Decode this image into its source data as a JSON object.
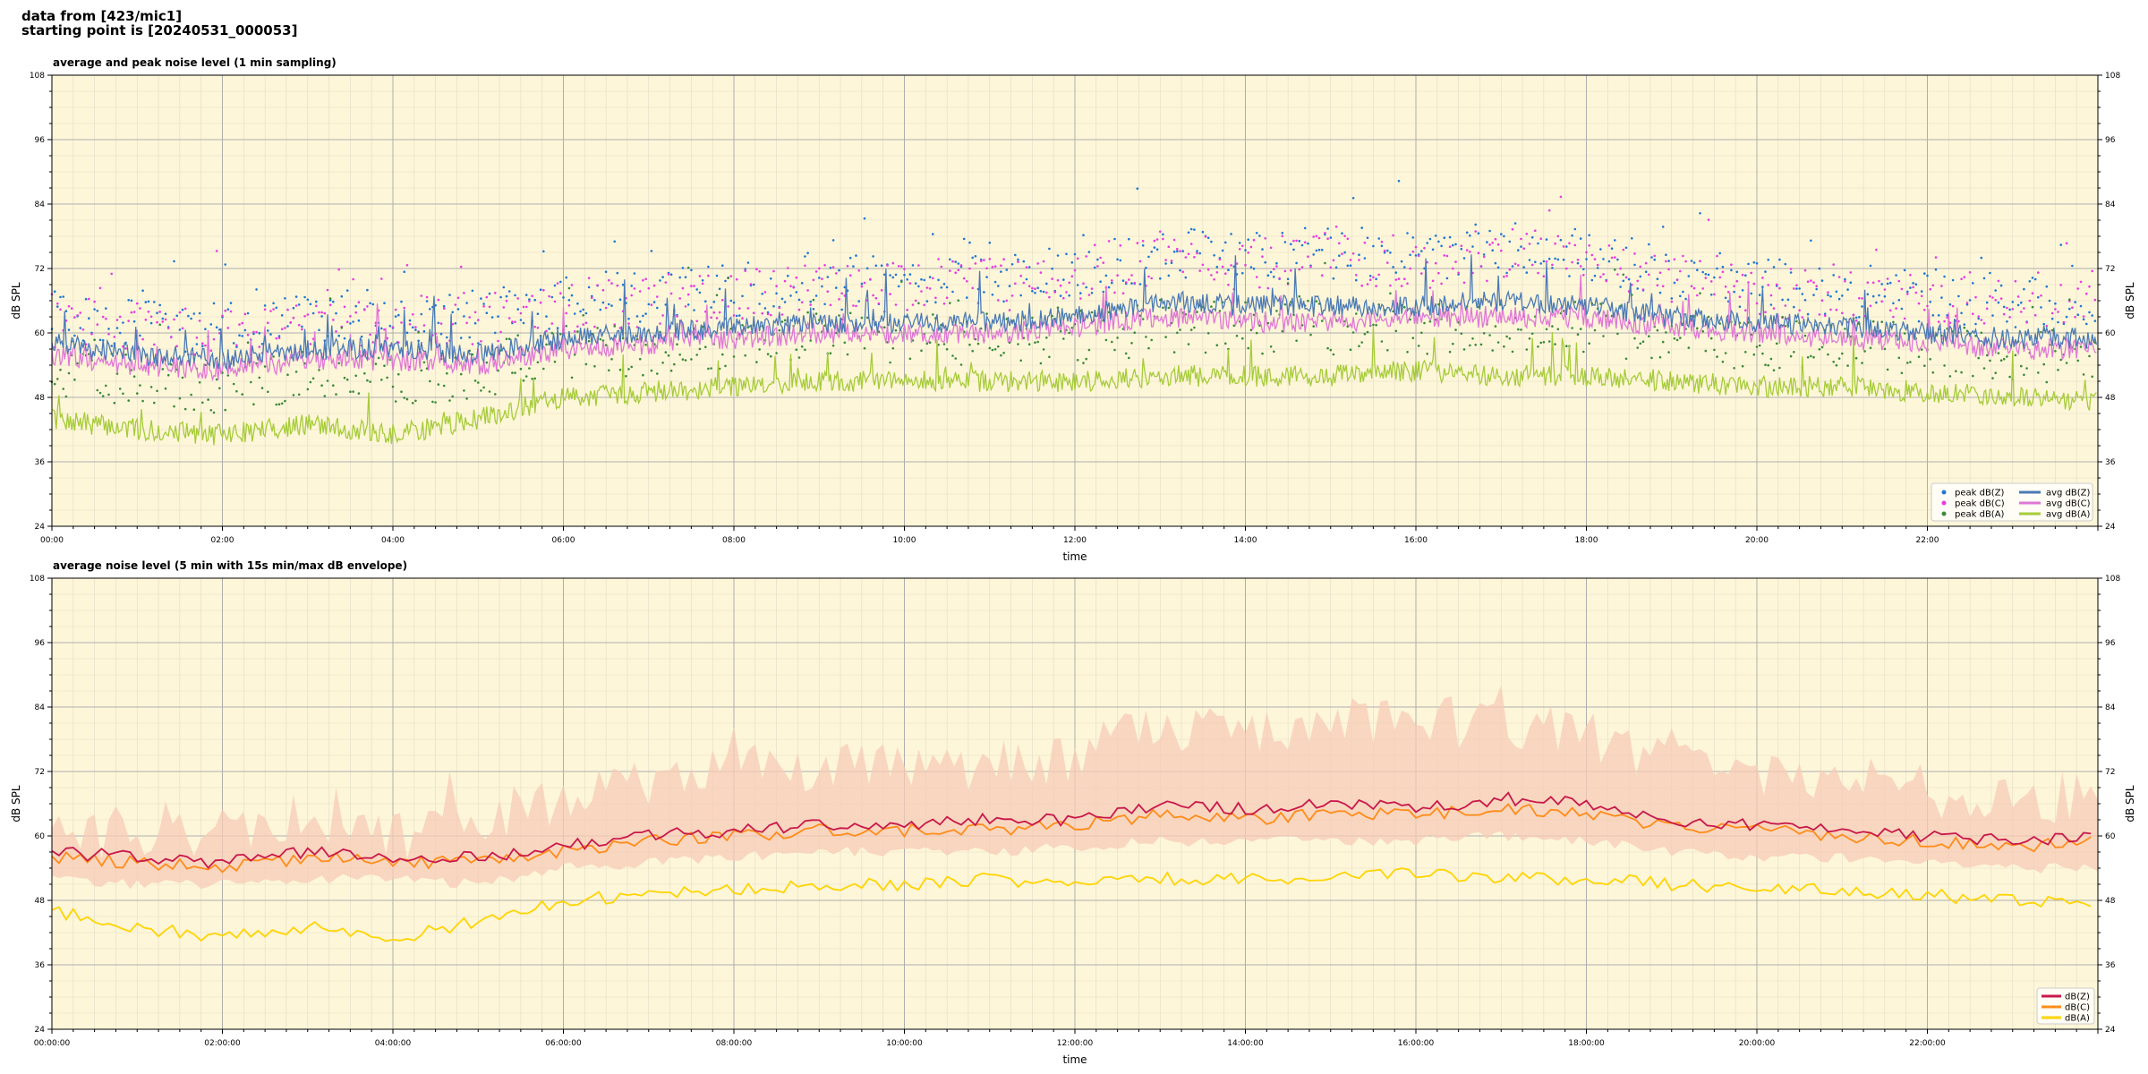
{
  "header": {
    "line1": "data from [423/mic1]",
    "line2": "starting point is [20240531_000053]"
  },
  "colors": {
    "plot_bg": "#fef6d9",
    "peak_z": "#1f77d4",
    "peak_c": "#e83be0",
    "peak_a": "#3a8a3a",
    "avg_z": "#4a7ab6",
    "avg_c": "#e077d6",
    "avg_a": "#a6cc3a",
    "env_z": "#c9184a",
    "env_c": "#ff8c1a",
    "env_a": "#ffd400",
    "envelope_fill": "#f7cbb5"
  },
  "chart_data": [
    {
      "type": "line",
      "title": "average and peak noise level (1 min sampling)",
      "xlabel": "time",
      "ylabel": "dB SPL",
      "ylabel_right": "dB SPL",
      "ylim": [
        24,
        108
      ],
      "yticks": [
        24,
        36,
        48,
        60,
        72,
        84,
        96,
        108
      ],
      "xlim_hours": [
        0,
        24
      ],
      "xtick_labels": [
        "00:00",
        "02:00",
        "04:00",
        "06:00",
        "08:00",
        "10:00",
        "12:00",
        "14:00",
        "16:00",
        "18:00",
        "20:00",
        "22:00"
      ],
      "grid": true,
      "legend_position": "bottom-right",
      "legend": [
        "peak dB(Z)",
        "peak dB(C)",
        "peak dB(A)",
        "avg dB(Z)",
        "avg dB(C)",
        "avg dB(A)"
      ],
      "series": [
        {
          "name": "avg dB(Z)",
          "kind": "line",
          "x_hours": [
            0,
            1,
            2,
            3,
            4,
            5,
            6,
            7,
            8,
            9,
            10,
            11,
            12,
            13,
            14,
            15,
            16,
            17,
            18,
            19,
            20,
            21,
            22,
            23,
            24
          ],
          "values": [
            58,
            56,
            55,
            57,
            57,
            56,
            59,
            60,
            61,
            62,
            62,
            62,
            63,
            66,
            65,
            65,
            65,
            66,
            65,
            63,
            62,
            61,
            60,
            59,
            59
          ]
        },
        {
          "name": "avg dB(C)",
          "kind": "line",
          "x_hours": [
            0,
            1,
            2,
            3,
            4,
            5,
            6,
            7,
            8,
            9,
            10,
            11,
            12,
            13,
            14,
            15,
            16,
            17,
            18,
            19,
            20,
            21,
            22,
            23,
            24
          ],
          "values": [
            56,
            54,
            53,
            55,
            55,
            54,
            57,
            58,
            59,
            60,
            60,
            60,
            61,
            63,
            62,
            62,
            63,
            63,
            63,
            61,
            60,
            59,
            58,
            57,
            57
          ]
        },
        {
          "name": "avg dB(A)",
          "kind": "line",
          "x_hours": [
            0,
            1,
            2,
            3,
            4,
            5,
            6,
            7,
            8,
            9,
            10,
            11,
            12,
            13,
            14,
            15,
            16,
            17,
            18,
            19,
            20,
            21,
            22,
            23,
            24
          ],
          "values": [
            44,
            42,
            41,
            43,
            41,
            44,
            48,
            49,
            50,
            51,
            51,
            51,
            51,
            52,
            52,
            52,
            53,
            52,
            52,
            51,
            50,
            50,
            49,
            48,
            47
          ]
        },
        {
          "name": "peak dB(Z)",
          "kind": "scatter",
          "x_hours": [
            0,
            1,
            2,
            3,
            4,
            5,
            6,
            7,
            8,
            9,
            10,
            11,
            12,
            13,
            14,
            15,
            16,
            17,
            18,
            19,
            20,
            21,
            22,
            23,
            24
          ],
          "values": [
            62,
            61,
            60,
            62,
            62,
            62,
            65,
            66,
            67,
            68,
            69,
            69,
            70,
            74,
            73,
            74,
            73,
            75,
            74,
            70,
            68,
            67,
            66,
            65,
            65
          ]
        },
        {
          "name": "peak dB(C)",
          "kind": "scatter",
          "x_hours": [
            0,
            1,
            2,
            3,
            4,
            5,
            6,
            7,
            8,
            9,
            10,
            11,
            12,
            13,
            14,
            15,
            16,
            17,
            18,
            19,
            20,
            21,
            22,
            23,
            24
          ],
          "values": [
            61,
            60,
            59,
            61,
            61,
            61,
            64,
            65,
            66,
            67,
            68,
            68,
            69,
            73,
            72,
            73,
            72,
            74,
            73,
            69,
            67,
            66,
            65,
            64,
            64
          ]
        },
        {
          "name": "peak dB(A)",
          "kind": "scatter",
          "x_hours": [
            0,
            1,
            2,
            3,
            4,
            5,
            6,
            7,
            8,
            9,
            10,
            11,
            12,
            13,
            14,
            15,
            16,
            17,
            18,
            19,
            20,
            21,
            22,
            23,
            24
          ],
          "values": [
            52,
            50,
            49,
            51,
            50,
            52,
            55,
            56,
            57,
            58,
            58,
            58,
            58,
            60,
            60,
            60,
            60,
            60,
            60,
            58,
            57,
            57,
            56,
            55,
            54
          ]
        }
      ]
    },
    {
      "type": "line",
      "title": "average noise level (5 min with 15s min/max dB envelope)",
      "xlabel": "time",
      "ylabel": "dB SPL",
      "ylabel_right": "dB SPL",
      "ylim": [
        24,
        108
      ],
      "yticks": [
        24,
        36,
        48,
        60,
        72,
        84,
        96,
        108
      ],
      "xlim_hours": [
        0,
        24
      ],
      "xtick_labels": [
        "00:00:00",
        "02:00:00",
        "04:00:00",
        "06:00:00",
        "08:00:00",
        "10:00:00",
        "12:00:00",
        "14:00:00",
        "16:00:00",
        "18:00:00",
        "20:00:00",
        "22:00:00"
      ],
      "grid": true,
      "legend_position": "bottom-right",
      "legend": [
        "dB(Z)",
        "dB(C)",
        "dB(A)"
      ],
      "series": [
        {
          "name": "dB(Z)",
          "x_hours": [
            0,
            1,
            2,
            3,
            4,
            5,
            6,
            7,
            8,
            9,
            10,
            11,
            12,
            13,
            14,
            15,
            16,
            17,
            18,
            19,
            20,
            21,
            22,
            23,
            24
          ],
          "values": [
            57,
            56,
            55,
            57,
            56,
            56,
            58,
            60,
            61,
            62,
            62,
            63,
            63,
            66,
            65,
            66,
            65,
            67,
            66,
            63,
            62,
            61,
            60,
            59,
            60
          ]
        },
        {
          "name": "dB(C)",
          "x_hours": [
            0,
            1,
            2,
            3,
            4,
            5,
            6,
            7,
            8,
            9,
            10,
            11,
            12,
            13,
            14,
            15,
            16,
            17,
            18,
            19,
            20,
            21,
            22,
            23,
            24
          ],
          "values": [
            56,
            55,
            54,
            56,
            55,
            55,
            57,
            59,
            60,
            61,
            61,
            61,
            62,
            64,
            63,
            64,
            64,
            65,
            64,
            62,
            61,
            60,
            59,
            58,
            59
          ]
        },
        {
          "name": "dB(A)",
          "x_hours": [
            0,
            1,
            2,
            3,
            4,
            5,
            6,
            7,
            8,
            9,
            10,
            11,
            12,
            13,
            14,
            15,
            16,
            17,
            18,
            19,
            20,
            21,
            22,
            23,
            24
          ],
          "values": [
            46,
            43,
            41,
            43,
            41,
            44,
            48,
            49,
            50,
            51,
            51,
            52,
            51,
            52,
            52,
            52,
            53,
            52,
            52,
            51,
            50,
            50,
            49,
            48,
            48
          ]
        },
        {
          "name": "envelope max",
          "x_hours": [
            0,
            1,
            2,
            3,
            4,
            5,
            6,
            7,
            8,
            9,
            10,
            11,
            12,
            13,
            14,
            15,
            16,
            17,
            18,
            19,
            20,
            21,
            22,
            23,
            24
          ],
          "values": [
            66,
            64,
            66,
            68,
            65,
            68,
            72,
            74,
            78,
            78,
            77,
            78,
            80,
            86,
            84,
            88,
            86,
            86,
            84,
            78,
            76,
            75,
            73,
            72,
            72
          ]
        },
        {
          "name": "envelope min",
          "x_hours": [
            0,
            1,
            2,
            3,
            4,
            5,
            6,
            7,
            8,
            9,
            10,
            11,
            12,
            13,
            14,
            15,
            16,
            17,
            18,
            19,
            20,
            21,
            22,
            23,
            24
          ],
          "values": [
            52,
            51,
            51,
            52,
            52,
            51,
            54,
            55,
            56,
            57,
            57,
            57,
            58,
            59,
            59,
            59,
            59,
            60,
            59,
            57,
            56,
            56,
            55,
            54,
            54
          ]
        }
      ]
    }
  ]
}
